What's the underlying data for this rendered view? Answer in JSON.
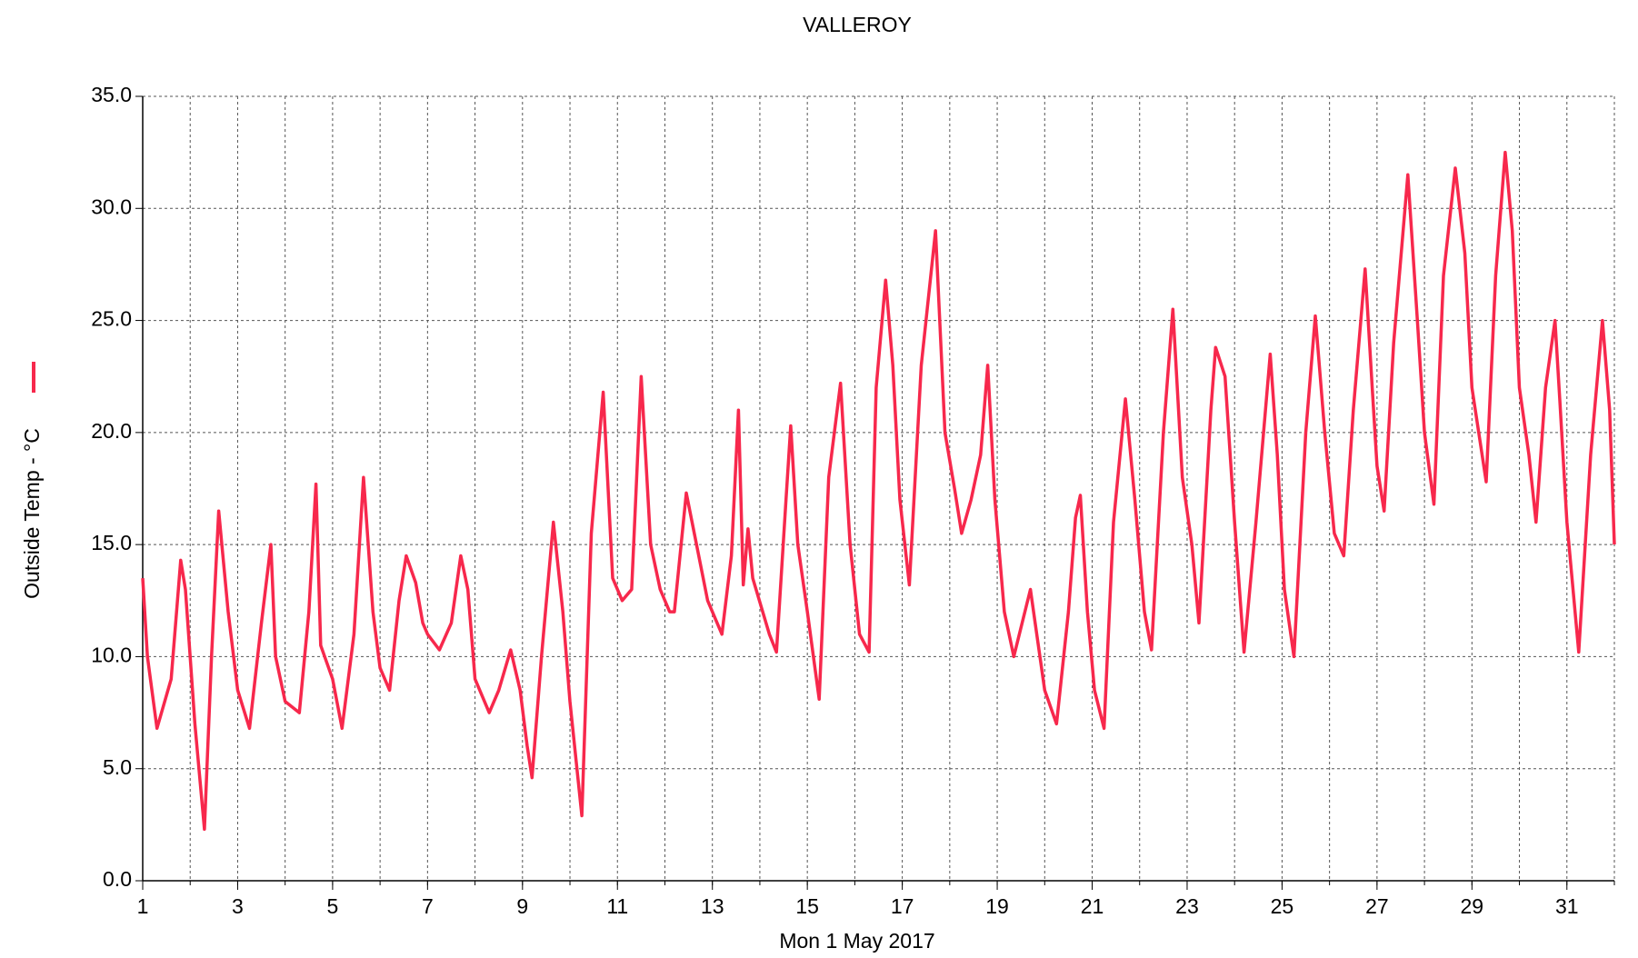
{
  "chart_data": {
    "type": "line",
    "title": "VALLEROY",
    "x_label": "Mon 1 May 2017",
    "xlim": [
      1,
      32
    ],
    "xticks": [
      1,
      3,
      5,
      7,
      9,
      11,
      13,
      15,
      17,
      19,
      21,
      23,
      25,
      27,
      29,
      31
    ],
    "x_grid": [
      1,
      2,
      3,
      4,
      5,
      6,
      7,
      8,
      9,
      10,
      11,
      12,
      13,
      14,
      15,
      16,
      17,
      18,
      19,
      20,
      21,
      22,
      23,
      24,
      25,
      26,
      27,
      28,
      29,
      30,
      31,
      32
    ],
    "ylim": [
      0,
      35
    ],
    "yticks": [
      {
        "value": 0,
        "label": "0.0"
      },
      {
        "value": 5,
        "label": "5.0"
      },
      {
        "value": 10,
        "label": "10.0"
      },
      {
        "value": 15,
        "label": "15.0"
      },
      {
        "value": 20,
        "label": "20.0"
      },
      {
        "value": 25,
        "label": "25.0"
      },
      {
        "value": 30,
        "label": "30.0"
      },
      {
        "value": 35,
        "label": "35.0"
      }
    ],
    "grid": true,
    "x": [
      1.0,
      1.1,
      1.3,
      1.6,
      1.8,
      1.9,
      2.1,
      2.3,
      2.45,
      2.6,
      2.8,
      3.0,
      3.25,
      3.5,
      3.7,
      3.8,
      4.0,
      4.3,
      4.5,
      4.65,
      4.75,
      5.0,
      5.2,
      5.45,
      5.65,
      5.85,
      6.0,
      6.2,
      6.4,
      6.55,
      6.75,
      6.9,
      7.0,
      7.25,
      7.5,
      7.7,
      7.85,
      8.0,
      8.3,
      8.5,
      8.75,
      8.95,
      9.1,
      9.2,
      9.4,
      9.65,
      9.85,
      10.0,
      10.25,
      10.45,
      10.7,
      10.9,
      11.1,
      11.3,
      11.5,
      11.7,
      11.9,
      12.1,
      12.2,
      12.45,
      12.9,
      13.2,
      13.4,
      13.55,
      13.65,
      13.75,
      13.85,
      14.2,
      14.35,
      14.55,
      14.65,
      14.8,
      15.0,
      15.25,
      15.45,
      15.7,
      15.9,
      16.1,
      16.3,
      16.45,
      16.65,
      16.8,
      16.95,
      17.15,
      17.4,
      17.7,
      17.9,
      18.1,
      18.25,
      18.45,
      18.65,
      18.8,
      18.95,
      19.15,
      19.35,
      19.7,
      19.8,
      20.0,
      20.25,
      20.5,
      20.65,
      20.75,
      20.9,
      21.05,
      21.25,
      21.45,
      21.7,
      21.9,
      22.1,
      22.25,
      22.5,
      22.7,
      22.9,
      23.1,
      23.25,
      23.5,
      23.6,
      23.8,
      24.0,
      24.2,
      24.45,
      24.75,
      24.9,
      25.05,
      25.25,
      25.5,
      25.7,
      25.9,
      26.1,
      26.3,
      26.5,
      26.75,
      26.9,
      27.0,
      27.15,
      27.35,
      27.65,
      27.85,
      28.0,
      28.2,
      28.4,
      28.65,
      28.85,
      29.0,
      29.3,
      29.5,
      29.7,
      29.85,
      30.0,
      30.2,
      30.35,
      30.55,
      30.75,
      30.85,
      31.0,
      31.25,
      31.5,
      31.75,
      31.9,
      32.0
    ],
    "series": [
      {
        "name": "Outside Temp - °C",
        "color": "#f7284c",
        "values": [
          13.5,
          10,
          6.8,
          9,
          14.3,
          13,
          7,
          2.3,
          10,
          16.5,
          12,
          8.5,
          6.8,
          11.5,
          15,
          10,
          8,
          7.5,
          12,
          17.7,
          10.5,
          9,
          6.8,
          11,
          18,
          12,
          9.5,
          8.5,
          12.5,
          14.5,
          13.3,
          11.5,
          11,
          10.3,
          11.5,
          14.5,
          13,
          9,
          7.5,
          8.5,
          10.3,
          8.5,
          6,
          4.6,
          10,
          16,
          12,
          8,
          2.9,
          15.5,
          21.8,
          13.5,
          12.5,
          13,
          22.5,
          15,
          13,
          12,
          12,
          17.3,
          12.5,
          11,
          14.5,
          21,
          13.2,
          15.7,
          13.5,
          11,
          10.2,
          17,
          20.3,
          15,
          12,
          8.1,
          18,
          22.2,
          15,
          11,
          10.2,
          22,
          26.8,
          23,
          17,
          13.2,
          23,
          29,
          20,
          17.5,
          15.5,
          17,
          19,
          23,
          17,
          12,
          10,
          13,
          11.5,
          8.5,
          7,
          12,
          16.2,
          17.2,
          12,
          8.5,
          6.8,
          16,
          21.5,
          17,
          12,
          10.3,
          20,
          25.5,
          18,
          15,
          11.5,
          21,
          23.8,
          22.5,
          16,
          10.2,
          16,
          23.5,
          19,
          13,
          10,
          20,
          25.2,
          20,
          15.5,
          14.5,
          21,
          27.3,
          22,
          18.5,
          16.5,
          24,
          31.5,
          25,
          20,
          16.8,
          27,
          31.8,
          28,
          22,
          17.8,
          27,
          32.5,
          29,
          22,
          19,
          16,
          22,
          25,
          21.5,
          16,
          10.2,
          19,
          25,
          21,
          15
        ]
      }
    ]
  }
}
